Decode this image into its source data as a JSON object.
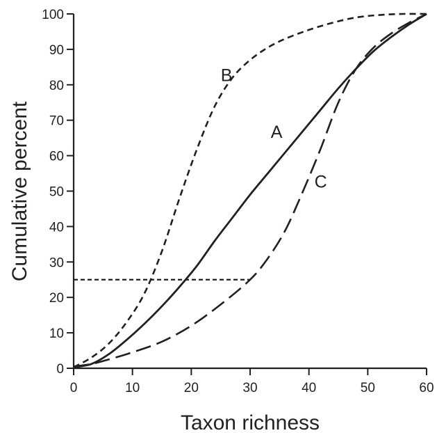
{
  "chart_data": {
    "type": "line",
    "title": "",
    "xlabel": "Taxon richness",
    "ylabel": "Cumulative percent",
    "xlim": [
      0,
      60
    ],
    "ylim": [
      0,
      100
    ],
    "x_ticks": [
      0,
      10,
      20,
      30,
      40,
      50,
      60
    ],
    "y_ticks": [
      0,
      10,
      20,
      30,
      40,
      50,
      60,
      70,
      80,
      90,
      100
    ],
    "grid": false,
    "legend": "none",
    "line_color": "#231f20",
    "series": [
      {
        "name": "A",
        "style": "solid",
        "x": [
          0,
          3,
          6,
          9,
          12,
          15,
          18,
          21,
          24,
          27,
          30,
          33,
          36,
          39,
          42,
          45,
          48,
          51,
          54,
          57,
          60
        ],
        "y": [
          0.3,
          1.2,
          4,
          8,
          12.5,
          17.5,
          23,
          29,
          36,
          42.5,
          49,
          55,
          61,
          67,
          73,
          79,
          84.5,
          89.5,
          93.5,
          97,
          100
        ]
      },
      {
        "name": "B",
        "style": "short-dash",
        "x": [
          0,
          3,
          6,
          9,
          12,
          15,
          18,
          21,
          24,
          27,
          30,
          33,
          36,
          40,
          44,
          48,
          52,
          56,
          60
        ],
        "y": [
          0.3,
          3,
          7,
          13,
          21,
          33,
          48,
          62,
          74,
          82,
          87,
          90.5,
          93,
          95.5,
          97.5,
          99,
          99.7,
          100,
          100
        ]
      },
      {
        "name": "C",
        "style": "long-dash",
        "x": [
          0,
          3,
          6,
          10,
          15,
          20,
          25,
          30,
          33,
          36,
          39,
          42,
          45,
          48,
          51,
          54,
          57,
          60
        ],
        "y": [
          0.5,
          1.2,
          2.5,
          4.5,
          7.5,
          12,
          18,
          25,
          31,
          39,
          50,
          62,
          75,
          84.5,
          90.5,
          94.5,
          97.5,
          100
        ]
      }
    ],
    "reference_line": {
      "style": "short-dash",
      "y": 25,
      "x_start": 0,
      "x_end": 30
    },
    "annotations": [
      {
        "text": "B",
        "x": 26,
        "y": 81
      },
      {
        "text": "A",
        "x": 34.5,
        "y": 65
      },
      {
        "text": "C",
        "x": 42,
        "y": 51
      }
    ]
  }
}
